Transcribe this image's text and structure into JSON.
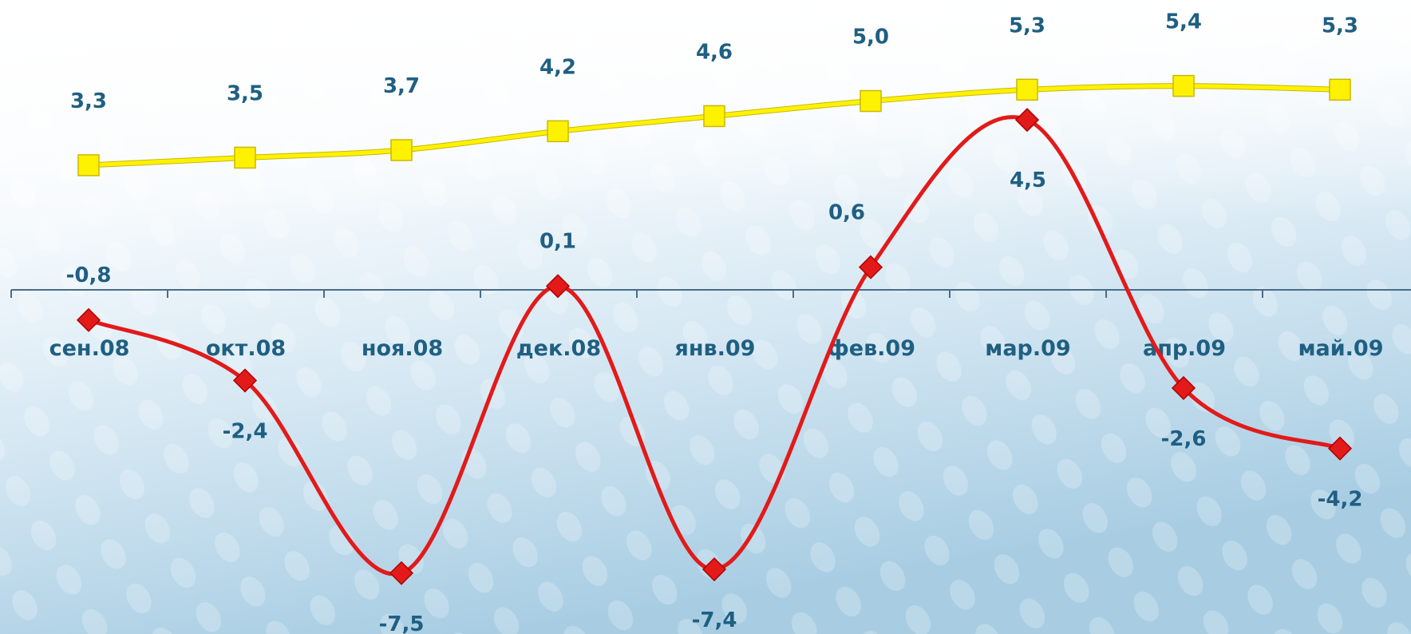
{
  "chart_data": {
    "type": "line",
    "categories": [
      "сен.08",
      "окт.08",
      "ноя.08",
      "дек.08",
      "янв.09",
      "фев.09",
      "мар.09",
      "апр.09",
      "май.09"
    ],
    "series": [
      {
        "values": [
          3.3,
          3.5,
          3.7,
          4.2,
          4.6,
          5.0,
          5.3,
          5.4,
          5.3
        ],
        "labels": [
          "3,3",
          "3,5",
          "3,7",
          "4,2",
          "4,6",
          "5,0",
          "5,3",
          "5,4",
          "5,3"
        ],
        "color": "#FFF200",
        "marker": "square"
      },
      {
        "values": [
          -0.8,
          -2.4,
          -7.5,
          0.1,
          -7.4,
          0.6,
          4.5,
          -2.6,
          -4.2
        ],
        "labels": [
          "-0,8",
          "-2,4",
          "-7,5",
          "0,1",
          "-7,4",
          "0,6",
          "4,5",
          "-2,6",
          "-4,2"
        ],
        "color": "#E21A1A",
        "marker": "diamond"
      }
    ],
    "label_color": "#1F5F82",
    "axis_color": "#4A6D86",
    "grid": false,
    "legend": "none"
  }
}
